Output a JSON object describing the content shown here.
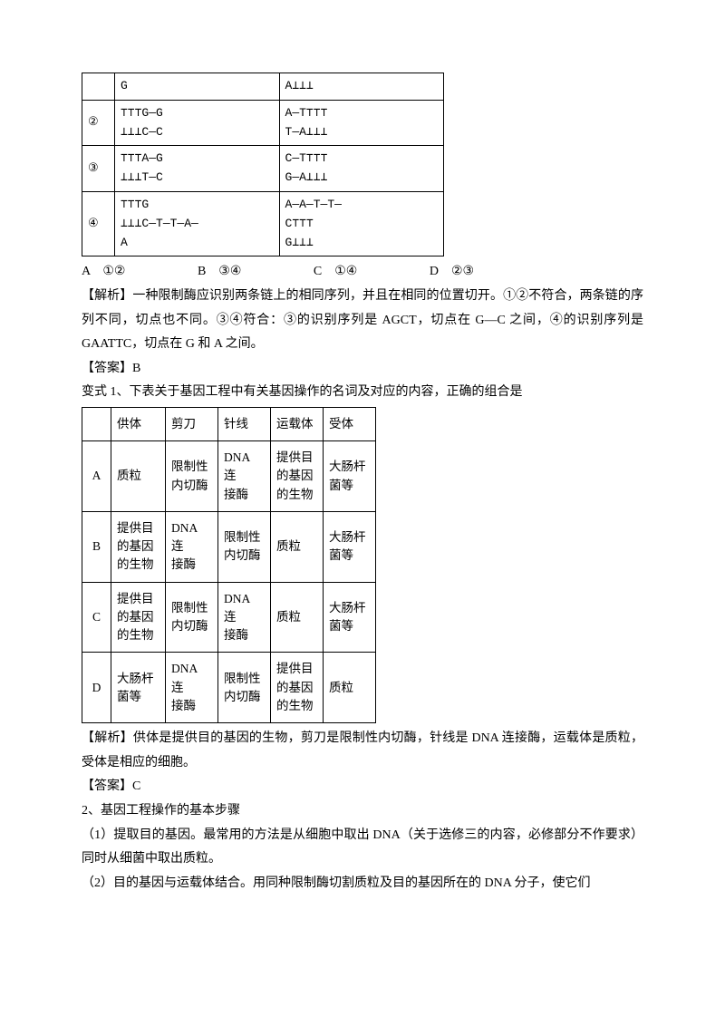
{
  "dnaTable": {
    "rows": [
      {
        "num": "",
        "left": [
          "G"
        ],
        "right": [
          "A⊥⊥⊥"
        ]
      },
      {
        "num": "②",
        "left": [
          "⊤⊤⊤G—G",
          "⊥⊥⊥C—C"
        ],
        "right": [
          "A—T⊤⊤⊤",
          "T—A⊥⊥⊥"
        ]
      },
      {
        "num": "③",
        "left": [
          "⊤⊤⊤A—G",
          "⊥⊥⊥T—C"
        ],
        "right": [
          "C—T⊤⊤⊤",
          "G—A⊥⊥⊥"
        ]
      },
      {
        "num": "④",
        "left": [
          "⊤⊤⊤G",
          "⊥⊥⊥C—T—T—A—",
          "A"
        ],
        "right": [
          "A—A—T—T—",
          "C⊤⊤⊤",
          "G⊥⊥⊥"
        ]
      }
    ]
  },
  "options": {
    "A": "①②",
    "B": "③④",
    "C": "①④",
    "D": "②③"
  },
  "analysis1": "【解析】一种限制酶应识别两条链上的相同序列，并且在相同的位置切开。①②不符合，两条链的序列不同，切点也不同。③④符合：③的识别序列是 AGCT，切点在 G—C 之间，④的识别序列是 GAATTC，切点在 G 和 A 之间。",
  "answer1": "【答案】B",
  "variant1": "变式 1、下表关于基因工程中有关基因操作的名词及对应的内容，正确的组合是",
  "engTable": {
    "headers": [
      "",
      "供体",
      "剪刀",
      "针线",
      "运载体",
      "受体"
    ],
    "rows": [
      [
        "A",
        "质粒",
        "限制性\n内切酶",
        "DNA 连\n接酶",
        "提供目\n的基因\n的生物",
        "大肠杆\n菌等"
      ],
      [
        "B",
        "提供目\n的基因\n的生物",
        "DNA 连\n接酶",
        "限制性\n内切酶",
        "质粒",
        "大肠杆\n菌等"
      ],
      [
        "C",
        "提供目\n的基因\n的生物",
        "限制性\n内切酶",
        "DNA 连\n接酶",
        "质粒",
        "大肠杆\n菌等"
      ],
      [
        "D",
        "大肠杆\n菌等",
        "DNA 连\n接酶",
        "限制性\n内切酶",
        "提供目\n的基因\n的生物",
        "质粒"
      ]
    ]
  },
  "analysis2": "【解析】供体是提供目的基因的生物，剪刀是限制性内切酶，针线是 DNA 连接酶，运载体是质粒，受体是相应的细胞。",
  "answer2": "【答案】C",
  "section2": "2、基因工程操作的基本步骤",
  "step1": "（1）提取目的基因。最常用的方法是从细胞中取出 DNA（关于选修三的内容，必修部分不作要求）同时从细菌中取出质粒。",
  "step2": "（2）目的基因与运载体结合。用同种限制酶切割质粒及目的基因所在的 DNA 分子，使它们"
}
